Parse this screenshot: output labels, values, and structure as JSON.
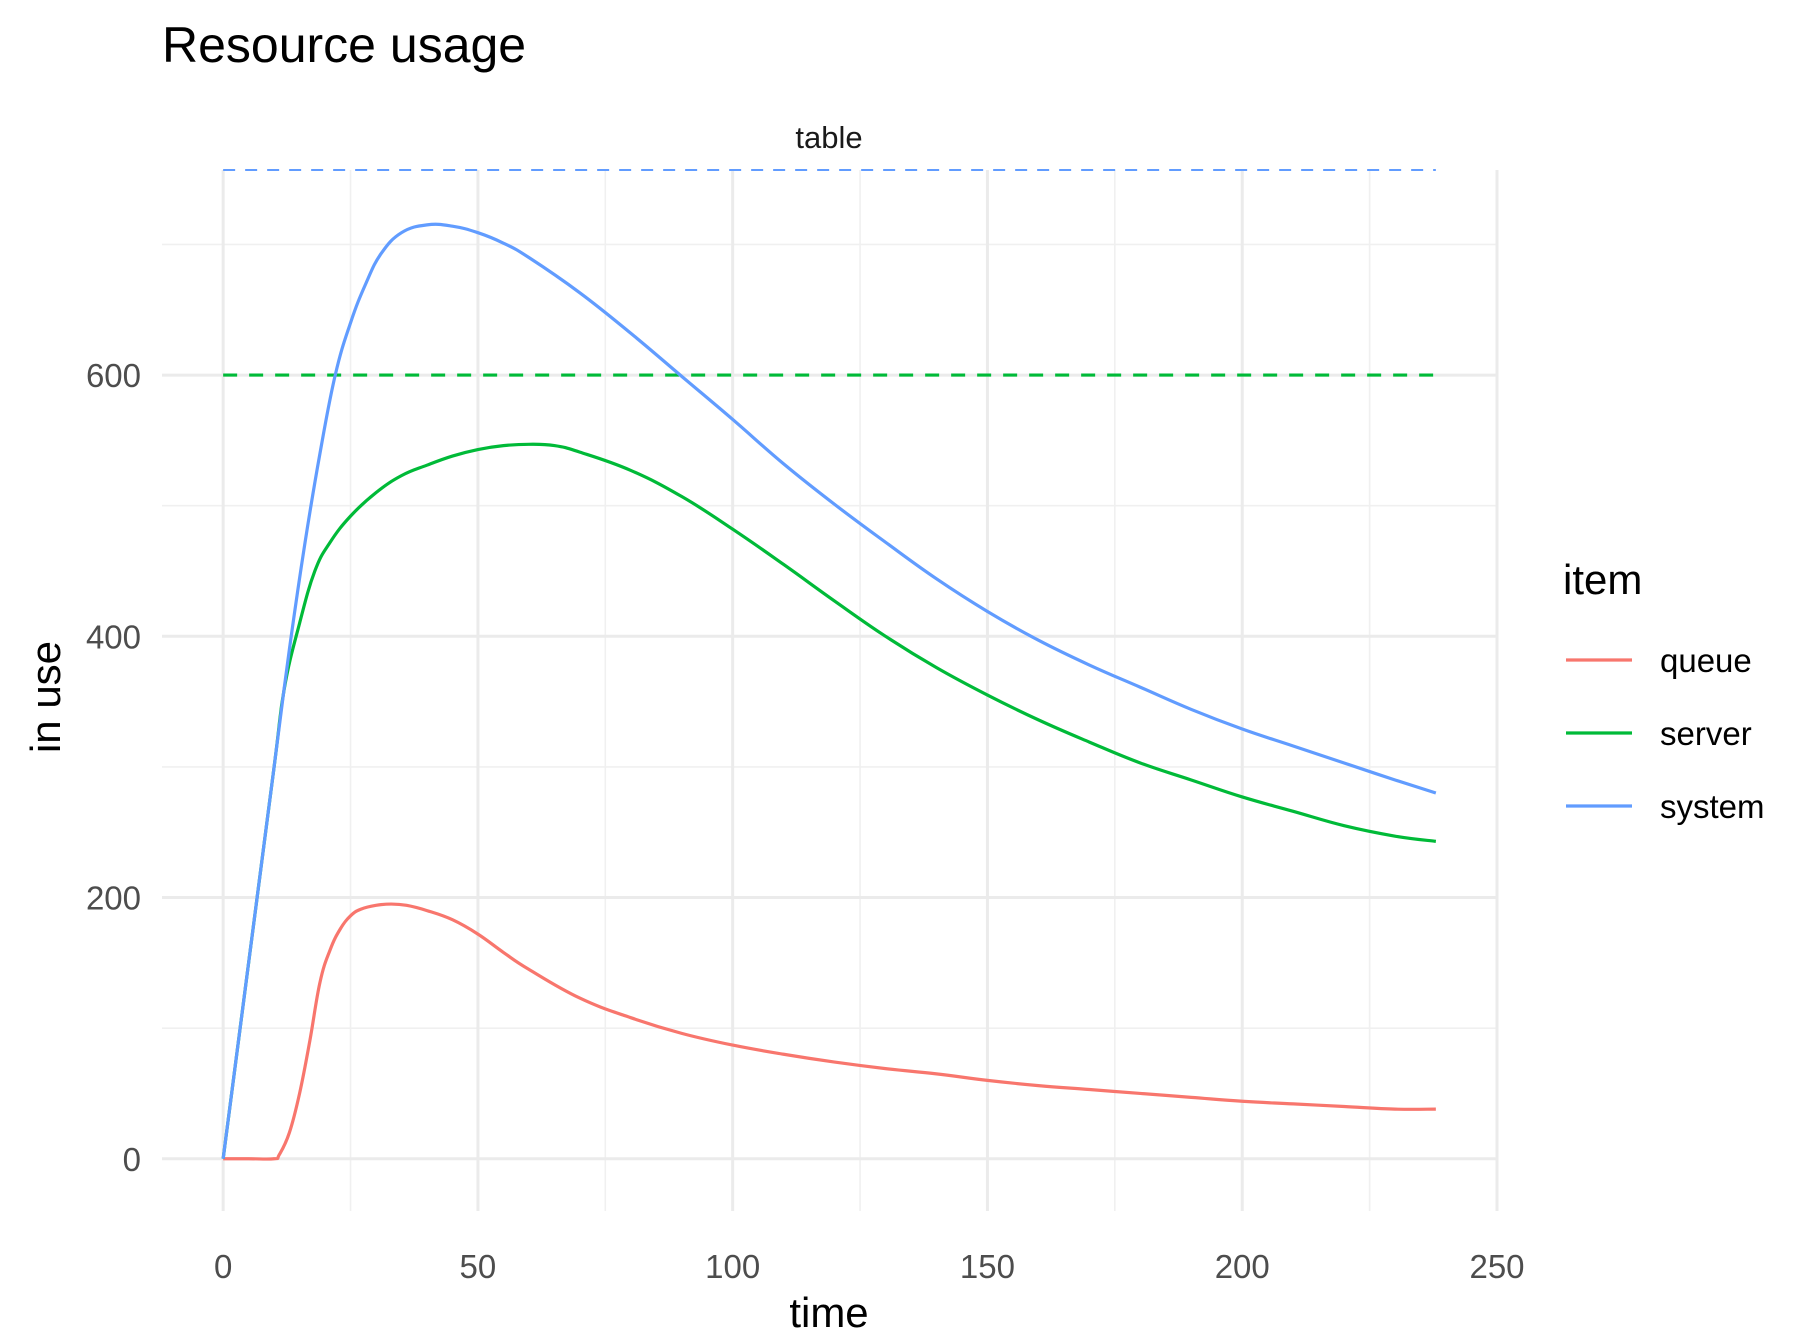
{
  "chart_data": {
    "type": "line",
    "title": "Resource usage",
    "facet_label": "table",
    "xlabel": "time",
    "ylabel": "in use",
    "xlim": [
      -12,
      250
    ],
    "ylim": [
      -40,
      757
    ],
    "x_ticks": [
      0,
      50,
      100,
      150,
      200,
      250
    ],
    "y_ticks": [
      0,
      200,
      400,
      600
    ],
    "x_minor_ticks": [
      25,
      75,
      125,
      175,
      225
    ],
    "y_minor_ticks": [
      100,
      300,
      500,
      700
    ],
    "grid": true,
    "legend_title": "item",
    "legend_position": "right",
    "series": [
      {
        "name": "queue",
        "color": "#F8766D",
        "x": [
          0,
          5,
          10,
          11,
          13,
          15,
          17,
          19,
          21,
          23,
          25,
          27,
          30,
          33,
          36,
          40,
          45,
          50,
          55,
          60,
          70,
          80,
          90,
          100,
          110,
          120,
          130,
          140,
          150,
          160,
          170,
          180,
          190,
          200,
          210,
          220,
          230,
          238
        ],
        "values": [
          0,
          0,
          0,
          3,
          20,
          50,
          90,
          135,
          160,
          176,
          186,
          191,
          194,
          195,
          194,
          190,
          183,
          172,
          158,
          145,
          123,
          108,
          96,
          87,
          80,
          74,
          69,
          65,
          60,
          56,
          53,
          50,
          47,
          44,
          42,
          40,
          38,
          38
        ]
      },
      {
        "name": "server",
        "color": "#00BA38",
        "x": [
          0,
          5,
          10,
          12,
          15,
          18,
          21,
          25,
          30,
          35,
          40,
          45,
          50,
          55,
          60,
          65,
          70,
          80,
          90,
          100,
          110,
          120,
          130,
          140,
          150,
          160,
          170,
          180,
          190,
          200,
          210,
          220,
          230,
          238
        ],
        "values": [
          0,
          150,
          300,
          360,
          410,
          450,
          472,
          492,
          510,
          523,
          531,
          538,
          543,
          546,
          547,
          546,
          541,
          527,
          507,
          482,
          455,
          427,
          400,
          376,
          355,
          336,
          319,
          303,
          290,
          277,
          266,
          255,
          247,
          243
        ]
      },
      {
        "name": "system",
        "color": "#619CFF",
        "x": [
          0,
          5,
          10,
          13,
          16,
          19,
          22,
          25,
          28,
          31,
          35,
          40,
          45,
          50,
          55,
          60,
          70,
          80,
          90,
          100,
          110,
          120,
          130,
          140,
          150,
          160,
          170,
          180,
          190,
          200,
          210,
          220,
          230,
          238
        ],
        "values": [
          0,
          150,
          300,
          390,
          470,
          540,
          600,
          640,
          670,
          693,
          709,
          715,
          714,
          709,
          701,
          690,
          663,
          632,
          599,
          566,
          532,
          501,
          472,
          444,
          419,
          397,
          378,
          361,
          344,
          329,
          316,
          303,
          290,
          280
        ]
      }
    ],
    "reference_lines": [
      {
        "color": "#619CFF",
        "y": 757,
        "x_start": 0,
        "x_end": 238,
        "style": "dashed"
      },
      {
        "color": "#00BA38",
        "y": 600,
        "x_start": 0,
        "x_end": 238,
        "style": "dashed"
      }
    ]
  }
}
